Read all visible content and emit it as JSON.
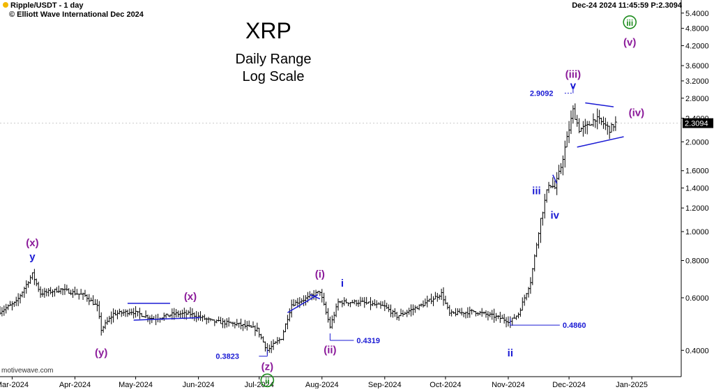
{
  "header": {
    "symbol": "Ripple/USDT - 1 day",
    "copyright": "© Elliott Wave International Dec 2024",
    "datetime": "Dec-24 2024  11:45:59  P:2.3094"
  },
  "watermark": "motivewave.com",
  "chart_data": {
    "type": "candlestick",
    "title": "XRP",
    "subtitle_lines": [
      "Daily Range",
      "Log Scale"
    ],
    "y_scale": "log",
    "ylim": [
      0.33,
      5.6
    ],
    "y_ticks": [
      "5.4000",
      "4.8000",
      "4.2000",
      "3.6000",
      "3.2000",
      "2.8000",
      "2.4000",
      "2.0000",
      "1.6000",
      "1.4000",
      "1.2000",
      "1.0000",
      "0.8000",
      "0.6000",
      "0.4000"
    ],
    "x_ticks": [
      "Mar-2024",
      "Apr-2024",
      "May-2024",
      "Jun-2024",
      "Jul-2024",
      "Aug-2024",
      "Sep-2024",
      "Oct-2024",
      "Nov-2024",
      "Dec-2024",
      "Jan-2025"
    ],
    "last_price": "2.3094",
    "series_anchors": [
      [
        "2024-02-24",
        0.54
      ],
      [
        "2024-03-03",
        0.58
      ],
      [
        "2024-03-11",
        0.72
      ],
      [
        "2024-03-15",
        0.62
      ],
      [
        "2024-03-25",
        0.64
      ],
      [
        "2024-04-06",
        0.61
      ],
      [
        "2024-04-12",
        0.56
      ],
      [
        "2024-04-14",
        0.47
      ],
      [
        "2024-04-20",
        0.53
      ],
      [
        "2024-04-29",
        0.54
      ],
      [
        "2024-05-10",
        0.51
      ],
      [
        "2024-05-20",
        0.53
      ],
      [
        "2024-05-28",
        0.53
      ],
      [
        "2024-06-08",
        0.5
      ],
      [
        "2024-06-20",
        0.49
      ],
      [
        "2024-06-30",
        0.47
      ],
      [
        "2024-07-05",
        0.4
      ],
      [
        "2024-07-12",
        0.44
      ],
      [
        "2024-07-17",
        0.57
      ],
      [
        "2024-07-25",
        0.6
      ],
      [
        "2024-07-31",
        0.63
      ],
      [
        "2024-08-05",
        0.48
      ],
      [
        "2024-08-09",
        0.58
      ],
      [
        "2024-08-20",
        0.58
      ],
      [
        "2024-09-01",
        0.56
      ],
      [
        "2024-09-07",
        0.52
      ],
      [
        "2024-09-20",
        0.57
      ],
      [
        "2024-09-29",
        0.62
      ],
      [
        "2024-10-03",
        0.53
      ],
      [
        "2024-10-15",
        0.54
      ],
      [
        "2024-10-25",
        0.52
      ],
      [
        "2024-11-02",
        0.5
      ],
      [
        "2024-11-06",
        0.53
      ],
      [
        "2024-11-12",
        0.68
      ],
      [
        "2024-11-17",
        1.1
      ],
      [
        "2024-11-21",
        1.45
      ],
      [
        "2024-11-24",
        1.4
      ],
      [
        "2024-11-27",
        1.65
      ],
      [
        "2024-12-03",
        2.55
      ],
      [
        "2024-12-06",
        2.2
      ],
      [
        "2024-12-10",
        2.25
      ],
      [
        "2024-12-14",
        2.4
      ],
      [
        "2024-12-18",
        2.3
      ],
      [
        "2024-12-21",
        2.2
      ],
      [
        "2024-12-24",
        2.31
      ]
    ],
    "annotations": [
      {
        "label": "(x)",
        "date": "2024-03-11",
        "price": 0.72,
        "color": "#8b1a9a"
      },
      {
        "label": "y",
        "date": "2024-03-11",
        "price": 0.72,
        "color": "#1a1ad4"
      },
      {
        "label": "(y)",
        "date": "2024-04-14",
        "price": 0.47,
        "color": "#8b1a9a"
      },
      {
        "label": "(x)",
        "date": "2024-05-28",
        "price": 0.53,
        "color": "#8b1a9a"
      },
      {
        "label": "(z)",
        "date": "2024-07-05",
        "price": 0.4,
        "color": "#8b1a9a"
      },
      {
        "label": "ii",
        "date": "2024-07-05",
        "price": 0.4,
        "color": "#1e8c1e",
        "circled": true
      },
      {
        "label": "(i)",
        "date": "2024-07-31",
        "price": 0.63,
        "color": "#8b1a9a"
      },
      {
        "label": "(ii)",
        "date": "2024-08-05",
        "price": 0.48,
        "color": "#8b1a9a"
      },
      {
        "label": "i",
        "date": "2024-08-09",
        "price": 0.58,
        "color": "#1a1ad4"
      },
      {
        "label": "ii",
        "date": "2024-11-02",
        "price": 0.5,
        "color": "#1a1ad4"
      },
      {
        "label": "iii",
        "date": "2024-11-17",
        "price": 1.1,
        "color": "#1a1ad4"
      },
      {
        "label": "iv",
        "date": "2024-11-24",
        "price": 1.4,
        "color": "#1a1ad4"
      },
      {
        "label": "v",
        "date": "2024-12-03",
        "price": 2.9092,
        "color": "#1a1ad4"
      },
      {
        "label": "(iii)",
        "date": "2024-12-03",
        "price": 2.9092,
        "color": "#8b1a9a"
      },
      {
        "label": "(iv)",
        "date": "2024-12-24",
        "price": 2.31,
        "color": "#8b1a9a"
      },
      {
        "label": "iii",
        "date": "2024-12-31",
        "price": 4.9,
        "color": "#1e8c1e",
        "circled": true
      },
      {
        "label": "(v)",
        "date": "2024-12-31",
        "price": 4.2,
        "color": "#8b1a9a"
      }
    ],
    "price_labels": [
      "0.3823",
      "0.4319",
      "0.4860",
      "2.9092"
    ],
    "colors": {
      "candle": "#000000",
      "wave_purple": "#8b1a9a",
      "wave_blue": "#1a1ad4",
      "wave_green": "#1e8c1e",
      "price_tag_bg": "#000000"
    }
  }
}
